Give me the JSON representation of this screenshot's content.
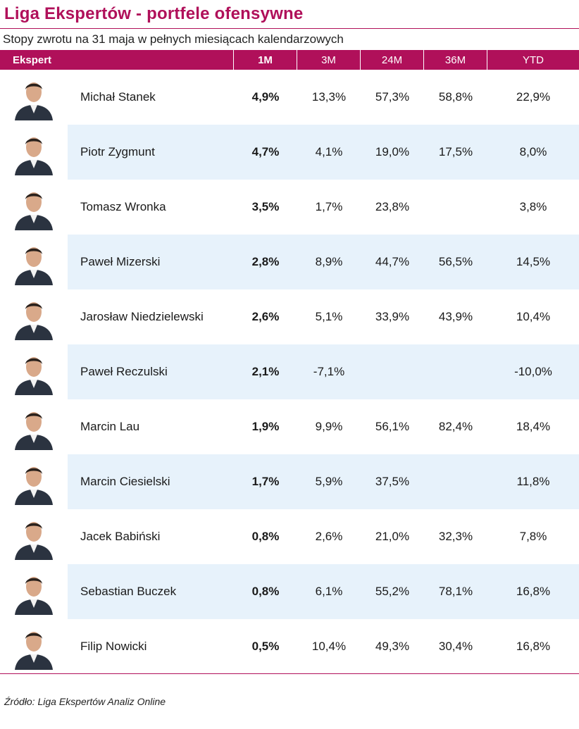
{
  "title": "Liga Ekspertów - portfele ofensywne",
  "subtitle": "Stopy zwrotu na 31 maja w pełnych miesiącach kalendarzowych",
  "accent_color": "#b0105a",
  "row_shade_color": "#e7f2fb",
  "table": {
    "headers": {
      "ekspert": "Ekspert",
      "m1": "1M",
      "m3": "3M",
      "m24": "24M",
      "m36": "36M",
      "ytd": "YTD"
    },
    "rows": [
      {
        "name": "Michał Stanek",
        "m1": "4,9%",
        "m3": "13,3%",
        "m24": "57,3%",
        "m36": "58,8%",
        "ytd": "22,9%",
        "photo": "avatar-photo"
      },
      {
        "name": "Piotr Zygmunt",
        "m1": "4,7%",
        "m3": "4,1%",
        "m24": "19,0%",
        "m36": "17,5%",
        "ytd": "8,0%",
        "photo": "avatar-photo"
      },
      {
        "name": "Tomasz Wronka",
        "m1": "3,5%",
        "m3": "1,7%",
        "m24": "23,8%",
        "m36": "",
        "ytd": "3,8%",
        "photo": "avatar-photo"
      },
      {
        "name": "Paweł Mizerski",
        "m1": "2,8%",
        "m3": "8,9%",
        "m24": "44,7%",
        "m36": "56,5%",
        "ytd": "14,5%",
        "photo": "avatar-photo"
      },
      {
        "name": "Jarosław Niedzielewski",
        "m1": "2,6%",
        "m3": "5,1%",
        "m24": "33,9%",
        "m36": "43,9%",
        "ytd": "10,4%",
        "photo": "avatar-photo"
      },
      {
        "name": "Paweł Reczulski",
        "m1": "2,1%",
        "m3": "-7,1%",
        "m24": "",
        "m36": "",
        "ytd": "-10,0%",
        "photo": "avatar-photo"
      },
      {
        "name": "Marcin Lau",
        "m1": "1,9%",
        "m3": "9,9%",
        "m24": "56,1%",
        "m36": "82,4%",
        "ytd": "18,4%",
        "photo": "avatar-photo"
      },
      {
        "name": "Marcin Ciesielski",
        "m1": "1,7%",
        "m3": "5,9%",
        "m24": "37,5%",
        "m36": "",
        "ytd": "11,8%",
        "photo": "avatar-photo"
      },
      {
        "name": "Jacek Babiński",
        "m1": "0,8%",
        "m3": "2,6%",
        "m24": "21,0%",
        "m36": "32,3%",
        "ytd": "7,8%",
        "photo": "avatar-photo"
      },
      {
        "name": "Sebastian Buczek",
        "m1": "0,8%",
        "m3": "6,1%",
        "m24": "55,2%",
        "m36": "78,1%",
        "ytd": "16,8%",
        "photo": "avatar-photo"
      },
      {
        "name": "Filip Nowicki",
        "m1": "0,5%",
        "m3": "10,4%",
        "m24": "49,3%",
        "m36": "30,4%",
        "ytd": "16,8%",
        "photo": "avatar-photo"
      }
    ]
  },
  "source": "Źródło: Liga Ekspertów Analiz Online"
}
